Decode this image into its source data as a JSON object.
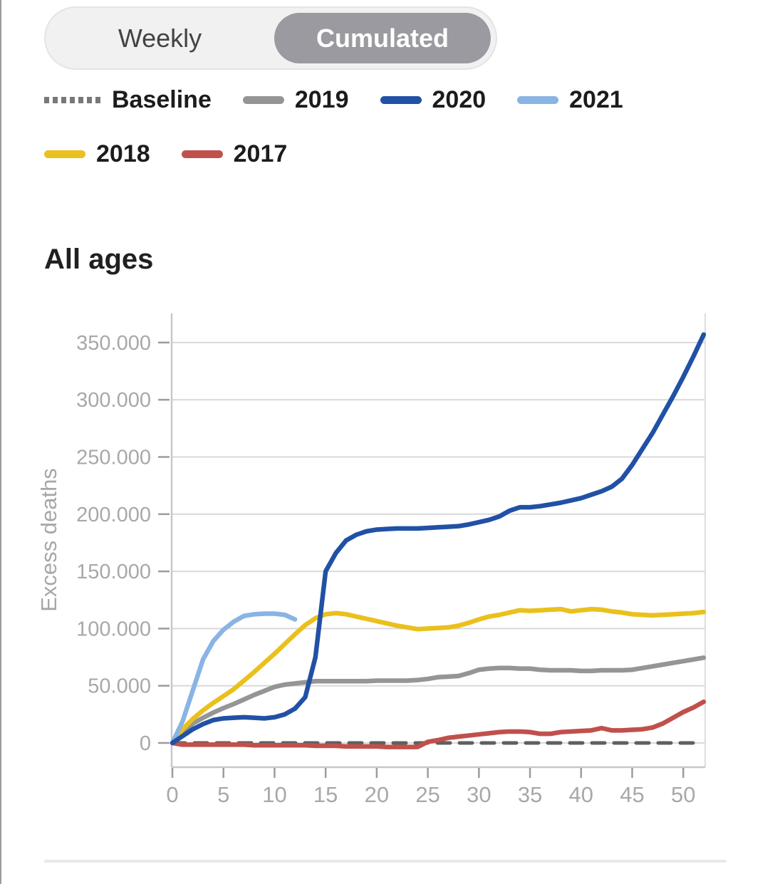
{
  "toggle": {
    "options": [
      {
        "label": "Weekly",
        "selected": false
      },
      {
        "label": "Cumulated",
        "selected": true
      }
    ],
    "selected_background": "#9b9aa0"
  },
  "legend": {
    "items": [
      {
        "label": "Baseline",
        "swatch_style": "dotted",
        "color": "#787878"
      },
      {
        "label": "2019",
        "swatch_style": "solid",
        "color": "#959595"
      },
      {
        "label": "2020",
        "swatch_style": "solid",
        "color": "#2151a5"
      },
      {
        "label": "2021",
        "swatch_style": "solid",
        "color": "#89b4e4"
      },
      {
        "label": "2018",
        "swatch_style": "solid",
        "color": "#eac01c"
      },
      {
        "label": "2017",
        "swatch_style": "solid",
        "color": "#c0504c"
      }
    ]
  },
  "section": {
    "title": "All ages"
  },
  "chart_data": {
    "type": "line",
    "title": "All ages",
    "xlabel": "",
    "ylabel": "Excess deaths",
    "xlim": [
      0,
      52.3
    ],
    "ylim": [
      -21000,
      375000
    ],
    "grid": "horizontal",
    "legend_position": "top",
    "x_ticks": [
      0,
      5,
      10,
      15,
      20,
      25,
      30,
      35,
      40,
      45,
      50
    ],
    "y_ticks": [
      {
        "value": 0,
        "label": "0"
      },
      {
        "value": 50000,
        "label": "50.000"
      },
      {
        "value": 100000,
        "label": "100.000"
      },
      {
        "value": 150000,
        "label": "150.000"
      },
      {
        "value": 200000,
        "label": "200.000"
      },
      {
        "value": 250000,
        "label": "250.000"
      },
      {
        "value": 300000,
        "label": "300.000"
      },
      {
        "value": 350000,
        "label": "350.000"
      }
    ],
    "series": [
      {
        "name": "Baseline",
        "color": "#5f5f5f",
        "line_style": "dashed",
        "x": [
          0,
          51
        ],
        "values": [
          0,
          0
        ]
      },
      {
        "name": "2017",
        "color": "#c0504c",
        "line_style": "solid",
        "values": [
          0,
          -1500,
          -1500,
          -1500,
          -1500,
          -1500,
          -1500,
          -1500,
          -2000,
          -2000,
          -2000,
          -2000,
          -2000,
          -2000,
          -2500,
          -2500,
          -2500,
          -3000,
          -3000,
          -3000,
          -3000,
          -3500,
          -3500,
          -3500,
          -3500,
          1000,
          2500,
          4500,
          5500,
          6500,
          7500,
          8500,
          9500,
          10000,
          10000,
          9500,
          8000,
          8000,
          9500,
          10000,
          10500,
          11000,
          13000,
          11000,
          11000,
          11500,
          12000,
          13500,
          17000,
          22000,
          27000,
          31000,
          36000
        ]
      },
      {
        "name": "2019",
        "color": "#959595",
        "line_style": "solid",
        "values": [
          0,
          8000,
          17000,
          22000,
          26500,
          30500,
          34000,
          38000,
          42000,
          45500,
          49000,
          51000,
          52000,
          53000,
          54000,
          54000,
          54000,
          54000,
          54000,
          54000,
          54500,
          54500,
          54500,
          54500,
          55000,
          56000,
          57500,
          58000,
          58500,
          61000,
          64000,
          65000,
          65500,
          65500,
          65000,
          65000,
          64000,
          63500,
          63500,
          63500,
          63000,
          63000,
          63500,
          63500,
          63500,
          64000,
          65500,
          67000,
          68500,
          70000,
          71500,
          73000,
          74500
        ]
      },
      {
        "name": "2018",
        "color": "#eac01c",
        "line_style": "solid",
        "values": [
          0,
          12000,
          21000,
          28500,
          35000,
          41000,
          47000,
          54500,
          62000,
          70000,
          78000,
          86500,
          95000,
          103000,
          109000,
          112500,
          113500,
          112500,
          110500,
          108500,
          106500,
          104500,
          102500,
          101000,
          99500,
          100000,
          100500,
          101000,
          102500,
          105000,
          108000,
          110500,
          112000,
          114000,
          116000,
          115500,
          116000,
          116500,
          117000,
          115000,
          116000,
          117000,
          116500,
          115000,
          114000,
          112500,
          112000,
          111500,
          112000,
          112500,
          113000,
          113500,
          114500
        ]
      },
      {
        "name": "2021",
        "color": "#89b4e4",
        "line_style": "solid",
        "values": [
          0,
          19000,
          46000,
          73000,
          89000,
          99000,
          106000,
          111000,
          112500,
          113000,
          113000,
          112000,
          108000
        ]
      },
      {
        "name": "2020",
        "color": "#2151a5",
        "line_style": "solid",
        "values": [
          0,
          6000,
          12000,
          16500,
          20000,
          21500,
          22000,
          22500,
          22000,
          21500,
          22500,
          25000,
          30000,
          40000,
          75000,
          150000,
          166000,
          177000,
          182000,
          185000,
          186500,
          187000,
          187500,
          187500,
          187500,
          188000,
          188500,
          189000,
          189500,
          191000,
          193000,
          195000,
          198000,
          203000,
          206000,
          206000,
          207000,
          208500,
          210000,
          212000,
          214000,
          217000,
          220000,
          224000,
          231000,
          243000,
          257000,
          271000,
          287000,
          303000,
          320000,
          338000,
          357000
        ]
      }
    ]
  }
}
